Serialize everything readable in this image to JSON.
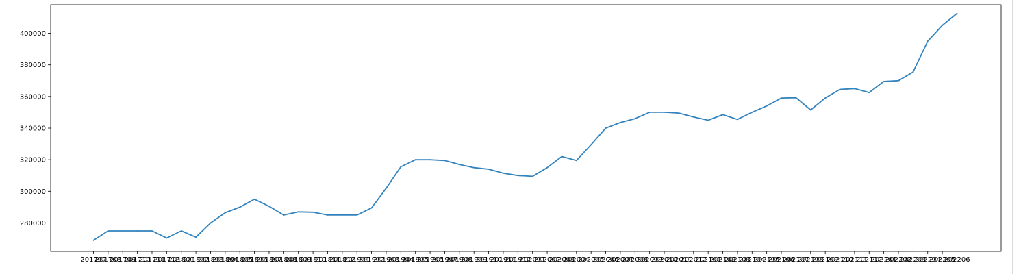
{
  "chart_data": {
    "type": "line",
    "title": "",
    "xlabel": "",
    "ylabel": "",
    "line_color": "#3182bd",
    "grid": false,
    "legend": "none",
    "ylim": [
      262000,
      418000
    ],
    "yticks": [
      280000,
      300000,
      320000,
      340000,
      360000,
      380000,
      400000
    ],
    "ytick_labels": [
      "280000",
      "300000",
      "320000",
      "340000",
      "360000",
      "380000",
      "400000"
    ],
    "x": [
      "201707",
      "201708",
      "201709",
      "201710",
      "201711",
      "201712",
      "201801",
      "201802",
      "201803",
      "201804",
      "201805",
      "201806",
      "201807",
      "201808",
      "201809",
      "201810",
      "201811",
      "201812",
      "201901",
      "201902",
      "201903",
      "201904",
      "201905",
      "201906",
      "201907",
      "201908",
      "201909",
      "201910",
      "201911",
      "201912",
      "202001",
      "202002",
      "202003",
      "202004",
      "202005",
      "202006",
      "202007",
      "202008",
      "202009",
      "202010",
      "202011",
      "202012",
      "202101",
      "202102",
      "202103",
      "202104",
      "202105",
      "202106",
      "202107",
      "202108",
      "202109",
      "202110",
      "202111",
      "202112",
      "202201",
      "202202",
      "202203",
      "202204",
      "202205",
      "202206"
    ],
    "x_tick_labels": [
      "201707",
      "201708",
      "201709",
      "201710",
      "201711",
      "201712",
      "201801",
      "201802",
      "201803",
      "201804",
      "201805",
      "201806",
      "201807",
      "201808",
      "201809",
      "201810",
      "201811",
      "201812",
      "201901",
      "201902",
      "201903",
      "201904",
      "201905",
      "201906",
      "201907",
      "201908",
      "201909",
      "201910",
      "201911",
      "201912",
      "202001",
      "202002",
      "202003",
      "202004",
      "202005",
      "202006",
      "202007",
      "202008",
      "202009",
      "202010",
      "202011",
      "202012",
      "202101",
      "202102",
      "202103",
      "202104",
      "202105",
      "202106",
      "202107",
      "202108",
      "202109",
      "202110",
      "202111",
      "202112",
      "202201",
      "202202",
      "202203",
      "202204",
      "202205",
      "202206"
    ],
    "series": [
      {
        "values": [
          269000,
          275000,
          275000,
          275000,
          275000,
          270500,
          275000,
          271000,
          280000,
          286500,
          290000,
          295000,
          290500,
          285000,
          287000,
          286800,
          285000,
          285000,
          285000,
          289500,
          302000,
          315500,
          320000,
          320000,
          319500,
          317000,
          315000,
          314000,
          311500,
          310000,
          309500,
          315000,
          322000,
          319500,
          329500,
          340000,
          343500,
          346000,
          350000,
          350000,
          349500,
          347000,
          345000,
          348500,
          345500,
          350000,
          354000,
          359000,
          359200,
          351500,
          359000,
          364500,
          365000,
          362500,
          369500,
          370000,
          375500,
          395000,
          405000,
          412500
        ]
      }
    ]
  }
}
